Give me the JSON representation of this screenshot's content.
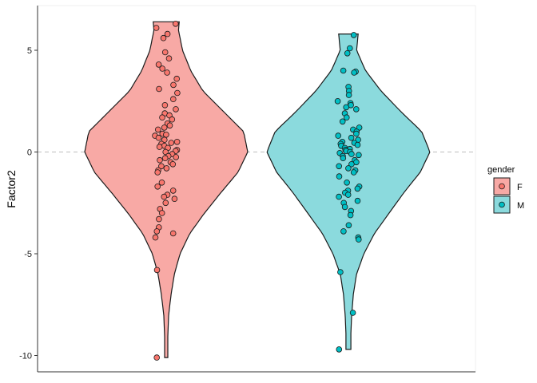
{
  "chart_data": {
    "type": "violin",
    "ylabel": "Factor2",
    "xlabel": "",
    "ylim": [
      -10.8,
      7.2
    ],
    "yticks": [
      5,
      0,
      -5,
      -10
    ],
    "ytick_labels": [
      "5",
      "0",
      "-5",
      "-10"
    ],
    "reference_line": 0,
    "grid": false,
    "legend": {
      "title": "gender",
      "placement": "right",
      "entries": [
        "F",
        "M"
      ]
    },
    "groups": [
      {
        "name": "F",
        "fill_color": "#F8766D",
        "violin_fill": "#F8A9A5",
        "y_range": [
          -10.1,
          6.4
        ],
        "density_width": [
          [
            -10.1,
            0.02
          ],
          [
            -9.0,
            0.02
          ],
          [
            -8.0,
            0.03
          ],
          [
            -7.0,
            0.06
          ],
          [
            -6.0,
            0.1
          ],
          [
            -5.0,
            0.17
          ],
          [
            -4.0,
            0.29
          ],
          [
            -3.0,
            0.47
          ],
          [
            -2.0,
            0.67
          ],
          [
            -1.0,
            0.88
          ],
          [
            0.0,
            1.0
          ],
          [
            1.0,
            0.95
          ],
          [
            2.0,
            0.7
          ],
          [
            3.0,
            0.45
          ],
          [
            4.0,
            0.3
          ],
          [
            5.0,
            0.2
          ],
          [
            6.0,
            0.15
          ],
          [
            6.4,
            0.16
          ]
        ],
        "points": [
          6.3,
          6.1,
          5.8,
          5.6,
          4.9,
          4.6,
          4.3,
          4.1,
          3.9,
          3.6,
          3.3,
          3.1,
          2.9,
          2.6,
          2.3,
          2.1,
          1.9,
          1.8,
          1.7,
          1.6,
          1.4,
          1.3,
          1.2,
          1.1,
          0.9,
          0.85,
          0.8,
          0.7,
          0.6,
          0.5,
          0.45,
          0.4,
          0.3,
          0.25,
          0.2,
          0.1,
          0.05,
          0.0,
          -0.1,
          -0.2,
          -0.25,
          -0.3,
          -0.4,
          -0.5,
          -0.6,
          -0.7,
          -0.8,
          -0.9,
          -1.0,
          -1.5,
          -1.7,
          -1.9,
          -2.1,
          -2.2,
          -2.3,
          -2.5,
          -2.8,
          -3.0,
          -3.3,
          -3.7,
          -3.9,
          -4.0,
          -4.2,
          -5.8,
          -10.1
        ]
      },
      {
        "name": "M",
        "fill_color": "#00BFC4",
        "violin_fill": "#8BDADD",
        "y_range": [
          -9.7,
          5.8
        ],
        "density_width": [
          [
            -9.7,
            0.03
          ],
          [
            -9.0,
            0.03
          ],
          [
            -8.0,
            0.04
          ],
          [
            -7.0,
            0.06
          ],
          [
            -6.0,
            0.1
          ],
          [
            -5.0,
            0.19
          ],
          [
            -4.0,
            0.32
          ],
          [
            -3.0,
            0.5
          ],
          [
            -2.0,
            0.68
          ],
          [
            -1.0,
            0.88
          ],
          [
            0.0,
            1.0
          ],
          [
            1.0,
            0.9
          ],
          [
            2.0,
            0.64
          ],
          [
            3.0,
            0.4
          ],
          [
            4.0,
            0.21
          ],
          [
            5.0,
            0.1
          ],
          [
            5.8,
            0.12
          ]
        ],
        "points": [
          5.75,
          5.1,
          4.85,
          4.0,
          3.95,
          3.9,
          3.2,
          3.0,
          2.8,
          2.5,
          2.4,
          2.3,
          2.2,
          2.1,
          1.9,
          1.7,
          1.5,
          1.2,
          1.1,
          1.0,
          0.9,
          0.8,
          0.7,
          0.6,
          0.5,
          0.45,
          0.4,
          0.35,
          0.3,
          0.2,
          0.15,
          0.1,
          0.05,
          0.0,
          -0.05,
          -0.1,
          -0.15,
          -0.2,
          -0.3,
          -0.4,
          -0.5,
          -0.6,
          -0.7,
          -0.8,
          -0.9,
          -1.0,
          -1.2,
          -1.5,
          -1.7,
          -1.8,
          -1.9,
          -2.0,
          -2.1,
          -2.2,
          -2.4,
          -2.5,
          -2.7,
          -2.9,
          -3.1,
          -3.6,
          -3.9,
          -4.2,
          -4.3,
          -5.9,
          -7.9,
          -9.7
        ]
      }
    ]
  }
}
